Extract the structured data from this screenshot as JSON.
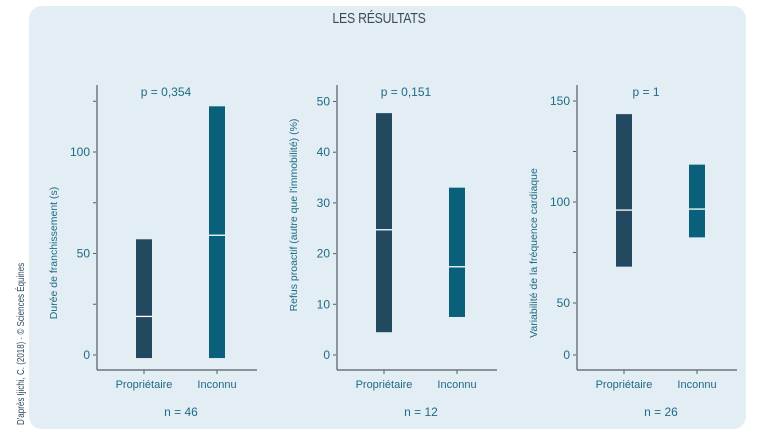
{
  "title": "LES RÉSULTATS",
  "credit": "D'après Ijichi, C. (2018) · © Sciences Équines",
  "colors": {
    "background": "#e2edf4",
    "proprietaire": "#22495f",
    "inconnu": "#0a5f7a",
    "median": "#ffffff",
    "axis": "#555d63",
    "text": "#1f6a86"
  },
  "chart_data": [
    {
      "type": "bar",
      "subtype": "floating-range-with-median",
      "categories": [
        "Propriétaire",
        "Inconnu"
      ],
      "ylabel": "Durée de franchissement (s)",
      "annotation": "p = 0,354",
      "n_label": "n = 46",
      "yticks": [
        0,
        50,
        100
      ],
      "minor_ticks": [
        25,
        75,
        125
      ],
      "ylim": [
        -7,
        130
      ],
      "series": [
        {
          "name": "Propriétaire",
          "min": -1.5,
          "max": 57,
          "median": 19
        },
        {
          "name": "Inconnu",
          "min": -1.5,
          "max": 122.5,
          "median": 59
        }
      ]
    },
    {
      "type": "bar",
      "subtype": "floating-range-with-median",
      "categories": [
        "Propriétaire",
        "Inconnu"
      ],
      "ylabel": "Refus proactif (autre que l'immobilité) (%)",
      "annotation": "p = 0,151",
      "n_label": "n = 12",
      "yticks": [
        0,
        10,
        20,
        30,
        40,
        50
      ],
      "minor_ticks": [],
      "ylim": [
        -3,
        53
      ],
      "series": [
        {
          "name": "Propriétaire",
          "min": 4.5,
          "max": 47.7,
          "median": 24.7
        },
        {
          "name": "Inconnu",
          "min": 7.5,
          "max": 33,
          "median": 17.4
        }
      ]
    },
    {
      "type": "bar",
      "subtype": "floating-range-with-median",
      "categories": [
        "Propriétaire",
        "Inconnu"
      ],
      "ylabel": "Variabilité de la fréquence cardiaque",
      "annotation": "p = 1",
      "n_label": "n = 26",
      "yticks": [
        0,
        50,
        100,
        150
      ],
      "minor_ticks": [
        75,
        125
      ],
      "axis_break": "between 0 and 50",
      "ylim": [
        0,
        158
      ],
      "series": [
        {
          "name": "Propriétaire",
          "min": 68,
          "max": 143.5,
          "median": 96
        },
        {
          "name": "Inconnu",
          "min": 82.5,
          "max": 118.5,
          "median": 96.5
        }
      ]
    }
  ]
}
